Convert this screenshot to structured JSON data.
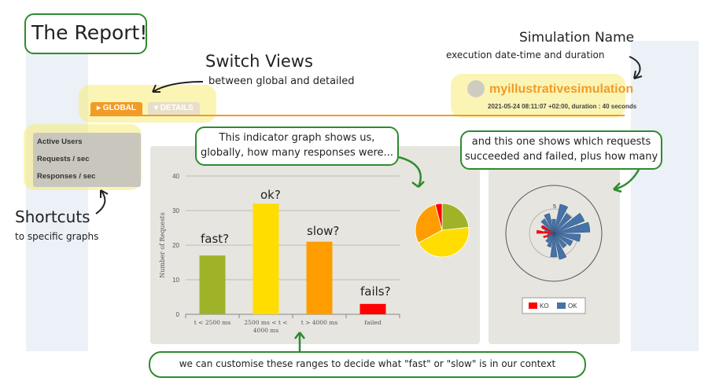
{
  "annotations": {
    "report_title": "The Report!",
    "switch_views_title": "Switch Views",
    "switch_views_sub": "between global and detailed",
    "sim_name_title": "Simulation Name",
    "sim_name_sub": "execution date-time and duration",
    "shortcuts_title": "Shortcuts",
    "shortcuts_sub": "to specific graphs",
    "indicator_bubble_line1": "This indicator graph shows us,",
    "indicator_bubble_line2": "globally, how many responses were...",
    "requests_bubble_line1": "and this one shows which requests",
    "requests_bubble_line2": "succeeded and failed, plus how many",
    "ranges_bubble": "we can customise these ranges to decide what \"fast\" or \"slow\" is in our context",
    "fast_label": "fast?",
    "ok_label": "ok?",
    "slow_label": "slow?",
    "fails_label": "fails?"
  },
  "tabs": {
    "global": "▸ GLOBAL",
    "details": "▾ DETAILS"
  },
  "simulation": {
    "name": "myillustrativesimulation",
    "meta": "2021-05-24 08:11:07 +02:00, duration : 40 seconds"
  },
  "menu": {
    "items": [
      "Active Users",
      "Requests / sec",
      "Responses / sec"
    ]
  },
  "chart_data": [
    {
      "type": "bar",
      "categories": [
        "t < 2500 ms",
        "2500 ms < t < 4000 ms",
        "t > 4000 ms",
        "failed"
      ],
      "category_lines": [
        [
          "t < 2500 ms"
        ],
        [
          "2500 ms < t <",
          "4000 ms"
        ],
        [
          "t > 4000 ms"
        ],
        [
          "failed"
        ]
      ],
      "values": [
        17,
        32,
        21,
        3
      ],
      "colors": [
        "#a0b228",
        "#ffdd00",
        "#ff9d00",
        "#ff0000"
      ],
      "ylabel": "Number of Requests",
      "ylim": [
        0,
        40
      ],
      "yticks": [
        0,
        10,
        20,
        30,
        40
      ],
      "grid": true
    },
    {
      "type": "pie",
      "values": [
        17,
        32,
        21,
        3
      ],
      "colors": [
        "#a0b228",
        "#ffdd00",
        "#ff9d00",
        "#ff0000"
      ]
    },
    {
      "type": "polar-bar",
      "legend": [
        "KO",
        "OK"
      ],
      "legend_colors": [
        "#ff0000",
        "#4572a7"
      ],
      "axis_label": "5"
    }
  ]
}
